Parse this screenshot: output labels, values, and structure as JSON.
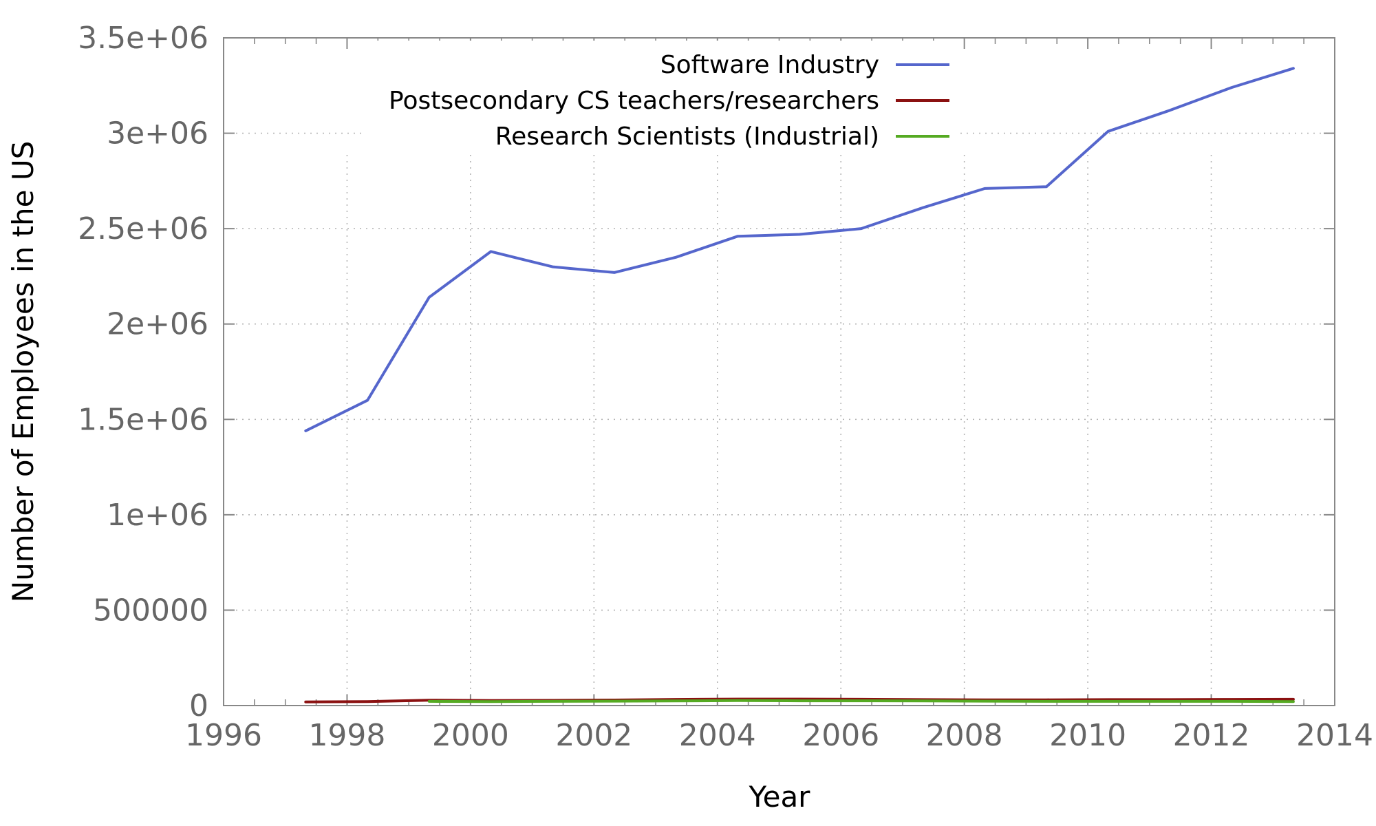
{
  "chart_data": {
    "type": "line",
    "title": "",
    "xlabel": "Year",
    "ylabel": "Number of Employees in the US",
    "xlim": [
      1996,
      2014
    ],
    "ylim": [
      0,
      3500000
    ],
    "x_ticks": [
      {
        "value": 1996,
        "label": "1996"
      },
      {
        "value": 1998,
        "label": "1998"
      },
      {
        "value": 2000,
        "label": "2000"
      },
      {
        "value": 2002,
        "label": "2002"
      },
      {
        "value": 2004,
        "label": "2004"
      },
      {
        "value": 2006,
        "label": "2006"
      },
      {
        "value": 2008,
        "label": "2008"
      },
      {
        "value": 2010,
        "label": "2010"
      },
      {
        "value": 2012,
        "label": "2012"
      },
      {
        "value": 2014,
        "label": "2014"
      }
    ],
    "y_ticks": [
      {
        "value": 0,
        "label": "0"
      },
      {
        "value": 500000,
        "label": "500000"
      },
      {
        "value": 1000000,
        "label": "1e+06"
      },
      {
        "value": 1500000,
        "label": "1.5e+06"
      },
      {
        "value": 2000000,
        "label": "2e+06"
      },
      {
        "value": 2500000,
        "label": "2.5e+06"
      },
      {
        "value": 3000000,
        "label": "3e+06"
      },
      {
        "value": 3500000,
        "label": "3.5e+06"
      }
    ],
    "grid": true,
    "legend_position": "top-right",
    "series": [
      {
        "name": "Software Industry",
        "color": "#5566cc",
        "points": [
          [
            1997.33,
            1440000
          ],
          [
            1998.33,
            1600000
          ],
          [
            1999.33,
            2140000
          ],
          [
            2000.33,
            2380000
          ],
          [
            2001.33,
            2300000
          ],
          [
            2002.33,
            2270000
          ],
          [
            2003.33,
            2350000
          ],
          [
            2004.33,
            2460000
          ],
          [
            2005.33,
            2470000
          ],
          [
            2006.33,
            2500000
          ],
          [
            2007.33,
            2610000
          ],
          [
            2008.33,
            2710000
          ],
          [
            2009.33,
            2720000
          ],
          [
            2010.33,
            3010000
          ],
          [
            2011.33,
            3120000
          ],
          [
            2012.33,
            3240000
          ],
          [
            2013.33,
            3340000
          ]
        ]
      },
      {
        "name": "Postsecondary CS teachers/researchers",
        "color": "#8b1111",
        "points": [
          [
            1997.33,
            19000
          ],
          [
            1998.33,
            21000
          ],
          [
            1999.33,
            28000
          ],
          [
            2000.33,
            26000
          ],
          [
            2001.33,
            27000
          ],
          [
            2002.33,
            29000
          ],
          [
            2003.33,
            32000
          ],
          [
            2004.33,
            34000
          ],
          [
            2005.33,
            34000
          ],
          [
            2006.33,
            33000
          ],
          [
            2007.33,
            31000
          ],
          [
            2008.33,
            30000
          ],
          [
            2009.33,
            30000
          ],
          [
            2010.33,
            31000
          ],
          [
            2011.33,
            31000
          ],
          [
            2012.33,
            32000
          ],
          [
            2013.33,
            33000
          ]
        ]
      },
      {
        "name": "Research Scientists (Industrial)",
        "color": "#55aa22",
        "points": [
          [
            1999.33,
            22000
          ],
          [
            2000.33,
            21000
          ],
          [
            2001.33,
            22000
          ],
          [
            2002.33,
            23000
          ],
          [
            2003.33,
            24000
          ],
          [
            2004.33,
            26000
          ],
          [
            2005.33,
            25000
          ],
          [
            2006.33,
            25000
          ],
          [
            2007.33,
            24000
          ],
          [
            2008.33,
            23000
          ],
          [
            2009.33,
            22000
          ],
          [
            2010.33,
            22000
          ],
          [
            2011.33,
            22000
          ],
          [
            2012.33,
            22000
          ],
          [
            2013.33,
            21000
          ]
        ]
      }
    ]
  }
}
